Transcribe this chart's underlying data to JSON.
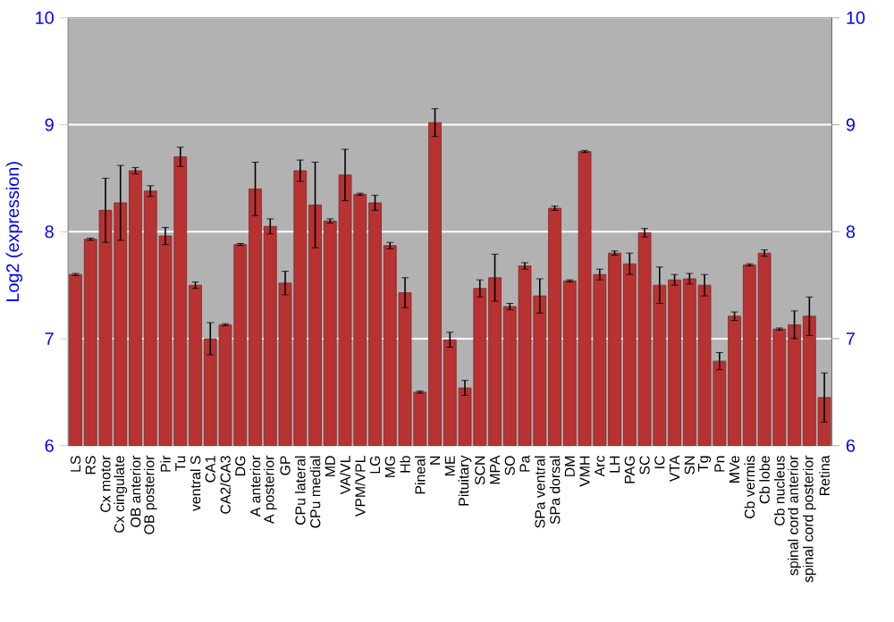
{
  "chart_data": {
    "type": "bar",
    "ylabel": "Log2 (expression)",
    "categories": [
      "LS",
      "RS",
      "Cx motor",
      "Cx cingulate",
      "OB anterior",
      "OB posterior",
      "Pir",
      "Tu",
      "ventral S",
      "CA1",
      "CA2/CA3",
      "DG",
      "A anterior",
      "A posterior",
      "GP",
      "CPu lateral",
      "CPu medial",
      "MD",
      "VA/VL",
      "VPM/VPL",
      "LG",
      "MG",
      "Hb",
      "Pineal",
      "N",
      "ME",
      "Pituitary",
      "SCN",
      "MPA",
      "SO",
      "Pa",
      "SPa ventral",
      "SPa dorsal",
      "DM",
      "VMH",
      "Arc",
      "LH",
      "PAG",
      "SC",
      "IC",
      "VTA",
      "SN",
      "Tg",
      "Pn",
      "MVe",
      "Cb vermis",
      "Cb lobe",
      "Cb nucleus",
      "spinal cord anterior",
      "spinal cord posterior",
      "Retina"
    ],
    "values": [
      7.6,
      7.93,
      8.2,
      8.27,
      8.57,
      8.38,
      7.96,
      8.7,
      7.5,
      7.0,
      7.13,
      7.88,
      8.4,
      8.05,
      7.52,
      8.57,
      8.25,
      8.1,
      8.53,
      8.35,
      8.27,
      7.87,
      7.43,
      6.5,
      9.02,
      6.99,
      6.54,
      7.47,
      7.57,
      7.3,
      7.68,
      7.4,
      8.22,
      7.54,
      8.75,
      7.6,
      7.8,
      7.7,
      7.99,
      7.5,
      7.55,
      7.56,
      7.5,
      6.79,
      7.21,
      7.69,
      7.8,
      7.09,
      7.13,
      7.21,
      6.45
    ],
    "errors": [
      0.01,
      0.01,
      0.3,
      0.35,
      0.03,
      0.05,
      0.08,
      0.09,
      0.03,
      0.15,
      0.01,
      0.01,
      0.25,
      0.07,
      0.11,
      0.1,
      0.4,
      0.02,
      0.24,
      0.01,
      0.07,
      0.03,
      0.14,
      0.01,
      0.13,
      0.07,
      0.07,
      0.08,
      0.22,
      0.03,
      0.03,
      0.16,
      0.02,
      0.01,
      0.01,
      0.05,
      0.02,
      0.1,
      0.04,
      0.17,
      0.05,
      0.05,
      0.1,
      0.08,
      0.04,
      0.01,
      0.03,
      0.01,
      0.13,
      0.18,
      0.23
    ],
    "color": "#b83232",
    "ylim": [
      6,
      10
    ],
    "yticks": [
      6,
      7,
      8,
      9,
      10
    ],
    "y2lim": [
      6,
      10
    ],
    "y2ticks": [
      6,
      7,
      8,
      9,
      10
    ],
    "grid": "y"
  }
}
